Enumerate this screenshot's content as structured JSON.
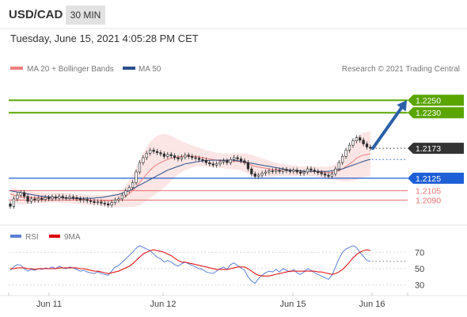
{
  "header": {
    "symbol": "USD/CAD",
    "timeframe": "30 MIN",
    "datetime": "Tuesday, June 15, 2021 4:05:28 PM CET"
  },
  "legend": {
    "ma20_label": "MA 20 + Bollinger Bands",
    "ma50_label": "MA 50",
    "ma20_color": "#f08080",
    "ma50_color": "#2b4f8a",
    "credit": "Research © 2021 Trading Central"
  },
  "rsi_legend": {
    "rsi_label": "RSI",
    "ma_label": "9MA",
    "rsi_color": "#5b7fd6",
    "ma_color": "#e00000"
  },
  "colors": {
    "resistance": "#5aa500",
    "support": "#1e5fd6",
    "minor": "#e87070",
    "current": "#333333",
    "arrow": "#2b5fa8"
  },
  "chart_data": [
    {
      "type": "candlestick",
      "x_ticks": [
        "Jun 11",
        "Jun 12",
        "Jun 15",
        "Jun 16"
      ],
      "y_range": [
        1.2055,
        1.229
      ],
      "levels": [
        {
          "value": 1.225,
          "label": "1.2250",
          "kind": "resistance"
        },
        {
          "value": 1.223,
          "label": "1.2230",
          "kind": "resistance"
        },
        {
          "value": 1.2173,
          "label": "1.2173",
          "kind": "current"
        },
        {
          "value": 1.2125,
          "label": "1.2125",
          "kind": "support"
        },
        {
          "value": 1.2105,
          "label": "1.2105",
          "kind": "minor"
        },
        {
          "value": 1.209,
          "label": "1.2090",
          "kind": "minor"
        }
      ],
      "close": [
        1.208,
        1.2092,
        1.2098,
        1.2102,
        1.2096,
        1.2088,
        1.2092,
        1.209,
        1.2093,
        1.2091,
        1.2094,
        1.2092,
        1.2095,
        1.2093,
        1.2096,
        1.2094,
        1.2093,
        1.2095,
        1.2094,
        1.2092,
        1.209,
        1.2091,
        1.2089,
        1.2088,
        1.2086,
        1.2087,
        1.2085,
        1.2084,
        1.2082,
        1.2086,
        1.209,
        1.2092,
        1.2098,
        1.2105,
        1.211,
        1.2118,
        1.2135,
        1.215,
        1.2158,
        1.2165,
        1.217,
        1.2168,
        1.2166,
        1.2164,
        1.216,
        1.2163,
        1.2161,
        1.2158,
        1.2156,
        1.2159,
        1.2162,
        1.216,
        1.2158,
        1.2157,
        1.2155,
        1.2154,
        1.215,
        1.2148,
        1.2146,
        1.2148,
        1.2151,
        1.2153,
        1.215,
        1.2155,
        1.2158,
        1.2156,
        1.2153,
        1.215,
        1.214,
        1.2132,
        1.2128,
        1.213,
        1.2133,
        1.2135,
        1.2137,
        1.2136,
        1.2138,
        1.2136,
        1.2139,
        1.2137,
        1.2136,
        1.2138,
        1.2135,
        1.2133,
        1.2135,
        1.214,
        1.2138,
        1.2136,
        1.2134,
        1.2132,
        1.213,
        1.2128,
        1.2132,
        1.214,
        1.215,
        1.216,
        1.217,
        1.2178,
        1.2185,
        1.219,
        1.2186,
        1.218,
        1.2175,
        1.2173
      ],
      "ma20": [
        1.21,
        1.2098,
        1.2096,
        1.2095,
        1.2094,
        1.2094,
        1.2094,
        1.2094,
        1.2094,
        1.2094,
        1.2094,
        1.2094,
        1.2094,
        1.2094,
        1.2094,
        1.2093,
        1.2093,
        1.2093,
        1.2092,
        1.2092,
        1.2092,
        1.2091,
        1.2091,
        1.209,
        1.209,
        1.209,
        1.2089,
        1.2089,
        1.2089,
        1.2089,
        1.209,
        1.2091,
        1.2093,
        1.2096,
        1.21,
        1.2105,
        1.2111,
        1.2118,
        1.2125,
        1.2132,
        1.2138,
        1.2143,
        1.2147,
        1.215,
        1.2153,
        1.2155,
        1.2157,
        1.2158,
        1.2159,
        1.216,
        1.216,
        1.216,
        1.216,
        1.216,
        1.2159,
        1.2158,
        1.2157,
        1.2156,
        1.2155,
        1.2154,
        1.2153,
        1.2153,
        1.2152,
        1.2152,
        1.2152,
        1.2152,
        1.2151,
        1.215,
        1.2148,
        1.2146,
        1.2144,
        1.2143,
        1.2142,
        1.2141,
        1.214,
        1.2139,
        1.2139,
        1.2138,
        1.2138,
        1.2138,
        1.2137,
        1.2137,
        1.2137,
        1.2136,
        1.2136,
        1.2136,
        1.2136,
        1.2136,
        1.2135,
        1.2135,
        1.2134,
        1.2134,
        1.2134,
        1.2135,
        1.2137,
        1.214,
        1.2144,
        1.2148,
        1.2152,
        1.2157,
        1.216,
        1.2162,
        1.2163,
        1.2164
      ],
      "ma50": [
        1.2105,
        1.2104,
        1.2103,
        1.2102,
        1.2101,
        1.21,
        1.2099,
        1.2098,
        1.2097,
        1.2096,
        1.2096,
        1.2095,
        1.2095,
        1.2094,
        1.2094,
        1.2094,
        1.2093,
        1.2093,
        1.2093,
        1.2093,
        1.2093,
        1.2093,
        1.2093,
        1.2093,
        1.2093,
        1.2094,
        1.2094,
        1.2095,
        1.2096,
        1.2097,
        1.2098,
        1.2099,
        1.2101,
        1.2103,
        1.2105,
        1.2108,
        1.2111,
        1.2114,
        1.2117,
        1.212,
        1.2123,
        1.2126,
        1.2129,
        1.2132,
        1.2135,
        1.2138,
        1.214,
        1.2142,
        1.2144,
        1.2146,
        1.2148,
        1.2149,
        1.215,
        1.2151,
        1.2152,
        1.2153,
        1.2153,
        1.2154,
        1.2154,
        1.2154,
        1.2154,
        1.2154,
        1.2154,
        1.2154,
        1.2154,
        1.2153,
        1.2152,
        1.2151,
        1.215,
        1.2149,
        1.2148,
        1.2147,
        1.2146,
        1.2145,
        1.2144,
        1.2143,
        1.2142,
        1.2141,
        1.214,
        1.2139,
        1.2138,
        1.2138,
        1.2137,
        1.2137,
        1.2136,
        1.2136,
        1.2136,
        1.2136,
        1.2136,
        1.2136,
        1.2136,
        1.2136,
        1.2137,
        1.2138,
        1.2139,
        1.214,
        1.2142,
        1.2144,
        1.2146,
        1.2148,
        1.215,
        1.2152,
        1.2154,
        1.2155
      ],
      "bb_width": [
        0.001,
        0.0011,
        0.0012,
        0.0012,
        0.0011,
        0.001,
        0.001,
        0.0009,
        0.0009,
        0.0009,
        0.0008,
        0.0008,
        0.0008,
        0.0008,
        0.0008,
        0.0008,
        0.0008,
        0.0008,
        0.0008,
        0.0008,
        0.0008,
        0.0008,
        0.0008,
        0.0008,
        0.0008,
        0.0008,
        0.0009,
        0.0009,
        0.0009,
        0.001,
        0.0011,
        0.0012,
        0.0014,
        0.0017,
        0.0021,
        0.0026,
        0.0031,
        0.0036,
        0.004,
        0.0043,
        0.0045,
        0.0046,
        0.0046,
        0.0045,
        0.0043,
        0.004,
        0.0036,
        0.0032,
        0.0028,
        0.0025,
        0.0022,
        0.002,
        0.0018,
        0.0016,
        0.0015,
        0.0014,
        0.0013,
        0.0013,
        0.0012,
        0.0012,
        0.0012,
        0.0012,
        0.0012,
        0.0012,
        0.0013,
        0.0013,
        0.0014,
        0.0015,
        0.0016,
        0.0017,
        0.0017,
        0.0016,
        0.0015,
        0.0014,
        0.0013,
        0.0012,
        0.0011,
        0.001,
        0.001,
        0.0009,
        0.0009,
        0.0009,
        0.0008,
        0.0008,
        0.0008,
        0.0008,
        0.0008,
        0.0008,
        0.0008,
        0.0009,
        0.0009,
        0.001,
        0.0011,
        0.0013,
        0.0016,
        0.002,
        0.0024,
        0.0028,
        0.0031,
        0.0034,
        0.0035,
        0.0036,
        0.0036,
        0.0036
      ],
      "projection": {
        "from": 1.2173,
        "to": 1.225
      }
    },
    {
      "type": "line",
      "y_ticks": [
        70,
        50,
        30
      ],
      "y_range": [
        20,
        80
      ],
      "series": [
        {
          "name": "RSI",
          "values": [
            48,
            52,
            55,
            54,
            50,
            47,
            49,
            48,
            50,
            49,
            51,
            50,
            52,
            50,
            53,
            51,
            50,
            52,
            51,
            49,
            47,
            48,
            46,
            45,
            44,
            46,
            44,
            43,
            42,
            47,
            52,
            54,
            58,
            62,
            66,
            70,
            75,
            78,
            76,
            74,
            72,
            68,
            64,
            62,
            58,
            60,
            58,
            55,
            53,
            56,
            58,
            56,
            54,
            52,
            50,
            49,
            46,
            45,
            44,
            47,
            50,
            52,
            49,
            55,
            57,
            54,
            51,
            48,
            40,
            35,
            32,
            38,
            42,
            45,
            47,
            46,
            49,
            46,
            50,
            48,
            46,
            49,
            45,
            43,
            46,
            50,
            48,
            45,
            43,
            41,
            39,
            37,
            42,
            52,
            62,
            70,
            74,
            76,
            78,
            76,
            70,
            65,
            60,
            59
          ]
        },
        {
          "name": "9MA",
          "values": [
            50,
            50,
            51,
            51,
            51,
            50,
            50,
            49,
            50,
            50,
            50,
            50,
            50,
            50,
            51,
            51,
            51,
            51,
            51,
            51,
            50,
            50,
            49,
            48,
            47,
            47,
            46,
            45,
            44,
            45,
            46,
            47,
            49,
            51,
            53,
            56,
            60,
            64,
            68,
            70,
            72,
            73,
            72,
            71,
            70,
            68,
            66,
            63,
            60,
            58,
            58,
            57,
            56,
            55,
            54,
            53,
            52,
            51,
            50,
            49,
            49,
            49,
            49,
            50,
            51,
            52,
            52,
            52,
            50,
            47,
            44,
            42,
            41,
            41,
            41,
            42,
            43,
            44,
            45,
            46,
            47,
            47,
            47,
            47,
            47,
            47,
            47,
            47,
            46,
            46,
            45,
            44,
            43,
            44,
            46,
            49,
            53,
            58,
            63,
            67,
            70,
            72,
            73,
            72
          ]
        }
      ]
    }
  ]
}
